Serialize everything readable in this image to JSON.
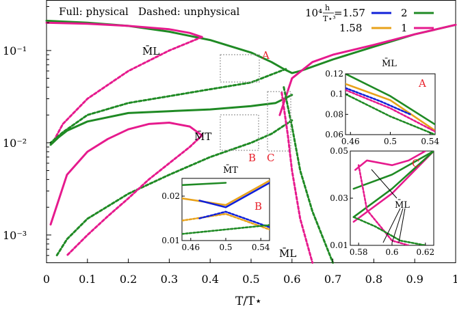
{
  "chart_data": {
    "type": "line",
    "xlabel": "T/T⋆",
    "ylabel": "",
    "xlim": [
      0,
      1
    ],
    "ylim": [
      0.0005,
      0.35
    ],
    "yscale": "log",
    "x_ticks": [
      "0",
      "0.1",
      "0.2",
      "0.3",
      "0.4",
      "0.5",
      "0.6",
      "0.7",
      "0.8",
      "0.9",
      "1"
    ],
    "y_ticks": [
      "10⁻³",
      "10⁻²",
      "10⁻¹"
    ],
    "legend": {
      "note_full": "Full: physical",
      "note_dashed": "Dashed: unphysical",
      "prefix": "10⁴",
      "frac_num": "h",
      "frac_den": "T⋆³",
      "row1_value": "=1.57",
      "row2_value": "1.58",
      "col_labels": [
        "2",
        "1"
      ],
      "colors": {
        "orange": "#e8a21a",
        "blue": "#1020d8",
        "green": "#1f8a24",
        "magenta": "#e61a8d"
      }
    },
    "annotations": {
      "ML": "M̄L",
      "MT": "M̄T",
      "box_A": "A",
      "box_B": "B",
      "box_C": "C"
    },
    "series": [
      {
        "color": "#1f8a24",
        "style": "solid",
        "x": [
          0.0,
          0.1,
          0.2,
          0.3,
          0.4,
          0.5,
          0.55,
          0.58,
          0.6,
          0.62,
          0.7,
          0.8,
          0.9,
          1.0
        ],
        "y": [
          0.21,
          0.2,
          0.185,
          0.16,
          0.13,
          0.095,
          0.075,
          0.063,
          0.057,
          0.06,
          0.08,
          0.11,
          0.15,
          0.19
        ]
      },
      {
        "color": "#e61a8d",
        "style": "solid",
        "x": [
          0.0,
          0.1,
          0.2,
          0.3,
          0.35,
          0.38
        ],
        "y": [
          0.2,
          0.195,
          0.185,
          0.17,
          0.155,
          0.14
        ]
      },
      {
        "color": "#e61a8d",
        "style": "dashed",
        "x": [
          0.38,
          0.3,
          0.2,
          0.1,
          0.04,
          0.015
        ],
        "y": [
          0.14,
          0.1,
          0.06,
          0.03,
          0.016,
          0.01
        ]
      },
      {
        "color": "#1f8a24",
        "style": "dashed",
        "x": [
          0.585,
          0.55,
          0.5,
          0.4,
          0.3,
          0.2,
          0.1,
          0.04,
          0.01
        ],
        "y": [
          0.063,
          0.055,
          0.045,
          0.038,
          0.032,
          0.027,
          0.02,
          0.013,
          0.01
        ]
      },
      {
        "color": "#1f8a24",
        "style": "solid",
        "x": [
          0.01,
          0.03,
          0.05,
          0.1,
          0.2,
          0.3,
          0.4,
          0.5,
          0.56,
          0.6
        ],
        "y": [
          0.0095,
          0.0115,
          0.0135,
          0.017,
          0.021,
          0.022,
          0.023,
          0.025,
          0.027,
          0.033
        ]
      },
      {
        "color": "#1f8a24",
        "style": "dashed",
        "x": [
          0.6,
          0.55,
          0.5,
          0.4,
          0.3,
          0.2,
          0.1,
          0.05,
          0.025
        ],
        "y": [
          0.0175,
          0.0125,
          0.01,
          0.007,
          0.0045,
          0.0028,
          0.0015,
          0.0009,
          0.0006
        ]
      },
      {
        "color": "#e61a8d",
        "style": "solid",
        "x": [
          0.01,
          0.05,
          0.1,
          0.15,
          0.2,
          0.25,
          0.3,
          0.35,
          0.38
        ],
        "y": [
          0.0013,
          0.0045,
          0.008,
          0.011,
          0.014,
          0.016,
          0.0165,
          0.015,
          0.012
        ]
      },
      {
        "color": "#e61a8d",
        "style": "dashed",
        "x": [
          0.38,
          0.35,
          0.3,
          0.25,
          0.2,
          0.15,
          0.1,
          0.05
        ],
        "y": [
          0.012,
          0.009,
          0.006,
          0.004,
          0.0025,
          0.0016,
          0.001,
          0.0006
        ]
      },
      {
        "color": "#e61a8d",
        "style": "solid",
        "x": [
          0.57,
          0.6,
          0.65,
          0.7,
          0.8,
          0.9,
          1.0
        ],
        "y": [
          0.02,
          0.05,
          0.075,
          0.09,
          0.115,
          0.15,
          0.19
        ]
      },
      {
        "color": "#e61a8d",
        "style": "dashed",
        "x": [
          0.575,
          0.59,
          0.6,
          0.62,
          0.65
        ],
        "y": [
          0.035,
          0.012,
          0.005,
          0.0015,
          0.0005
        ]
      },
      {
        "color": "#1f8a24",
        "style": "dashed",
        "x": [
          0.58,
          0.6,
          0.62,
          0.65,
          0.7
        ],
        "y": [
          0.04,
          0.015,
          0.005,
          0.0018,
          0.0005
        ]
      }
    ],
    "insets": [
      {
        "id": "A",
        "title": "M̄L",
        "label": "A",
        "xlim": [
          0.455,
          0.545
        ],
        "ylim": [
          0.06,
          0.12
        ],
        "x_ticks": [
          "0.46",
          "0.5",
          "0.54"
        ],
        "y_ticks": [
          "0.06",
          "0.08",
          "0.1",
          "0.12"
        ],
        "series": [
          {
            "color": "#1f8a24",
            "style": "solid",
            "x": [
              0.455,
              0.5,
              0.545
            ],
            "y": [
              0.12,
              0.098,
              0.07
            ]
          },
          {
            "color": "#e8a21a",
            "style": "solid",
            "x": [
              0.455,
              0.5,
              0.545
            ],
            "y": [
              0.11,
              0.094,
              0.064
            ]
          },
          {
            "color": "#1020d8",
            "style": "dashed",
            "x": [
              0.455,
              0.49,
              0.52
            ],
            "y": [
              0.106,
              0.093,
              0.08
            ]
          },
          {
            "color": "#e61a8d",
            "style": "dashed",
            "x": [
              0.455,
              0.5,
              0.545
            ],
            "y": [
              0.104,
              0.086,
              0.063
            ]
          },
          {
            "color": "#1f8a24",
            "style": "dashed",
            "x": [
              0.455,
              0.5,
              0.545
            ],
            "y": [
              0.1,
              0.078,
              0.06
            ]
          }
        ]
      },
      {
        "id": "B",
        "title": "M̄T",
        "label": "B",
        "xlim": [
          0.45,
          0.55
        ],
        "ylim": [
          0.01,
          0.024
        ],
        "x_ticks": [
          "0.46",
          "0.5",
          "0.54"
        ],
        "y_ticks": [
          "0.01",
          "0.02"
        ],
        "series": [
          {
            "color": "#1f8a24",
            "style": "solid",
            "x": [
              0.45,
              0.5
            ],
            "y": [
              0.0225,
              0.023
            ]
          },
          {
            "color": "#e8a21a",
            "style": "solid",
            "x": [
              0.45,
              0.5,
              0.55
            ],
            "y": [
              0.0195,
              0.018,
              0.0235
            ]
          },
          {
            "color": "#1020d8",
            "style": "solid",
            "x": [
              0.47,
              0.5,
              0.55
            ],
            "y": [
              0.019,
              0.0175,
              0.023
            ]
          },
          {
            "color": "#e8a21a",
            "style": "dashed",
            "x": [
              0.45,
              0.5,
              0.55
            ],
            "y": [
              0.0145,
              0.016,
              0.0125
            ]
          },
          {
            "color": "#1020d8",
            "style": "dashed",
            "x": [
              0.47,
              0.5,
              0.55
            ],
            "y": [
              0.015,
              0.0165,
              0.013
            ]
          },
          {
            "color": "#1f8a24",
            "style": "dashed",
            "x": [
              0.45,
              0.5,
              0.55
            ],
            "y": [
              0.0115,
              0.0125,
              0.0135
            ]
          }
        ]
      },
      {
        "id": "C",
        "title": "",
        "label": "C",
        "annotation": "M̄L",
        "xlim": [
          0.575,
          0.625
        ],
        "ylim": [
          0.01,
          0.05
        ],
        "x_ticks": [
          "0.58",
          "0.6",
          "0.62"
        ],
        "y_ticks": [
          "0.01",
          "0.03",
          "0.05"
        ],
        "series": [
          {
            "color": "#e61a8d",
            "style": "solid",
            "x": [
              0.578,
              0.585,
              0.6,
              0.61,
              0.62
            ],
            "y": [
              0.042,
              0.046,
              0.044,
              0.046,
              0.05
            ]
          },
          {
            "color": "#1f8a24",
            "style": "solid",
            "x": [
              0.577,
              0.6,
              0.625
            ],
            "y": [
              0.034,
              0.04,
              0.05
            ]
          },
          {
            "color": "#e61a8d",
            "style": "solid",
            "x": [
              0.577,
              0.6,
              0.625
            ],
            "y": [
              0.02,
              0.032,
              0.05
            ]
          },
          {
            "color": "#1f8a24",
            "style": "solid",
            "x": [
              0.577,
              0.6,
              0.625
            ],
            "y": [
              0.022,
              0.034,
              0.05
            ]
          },
          {
            "color": "#e61a8d",
            "style": "dashed",
            "x": [
              0.58,
              0.585,
              0.6,
              0.61
            ],
            "y": [
              0.044,
              0.025,
              0.012,
              0.01
            ]
          },
          {
            "color": "#1f8a24",
            "style": "dashed",
            "x": [
              0.577,
              0.59,
              0.605,
              0.62
            ],
            "y": [
              0.022,
              0.018,
              0.012,
              0.01
            ]
          }
        ]
      }
    ]
  }
}
